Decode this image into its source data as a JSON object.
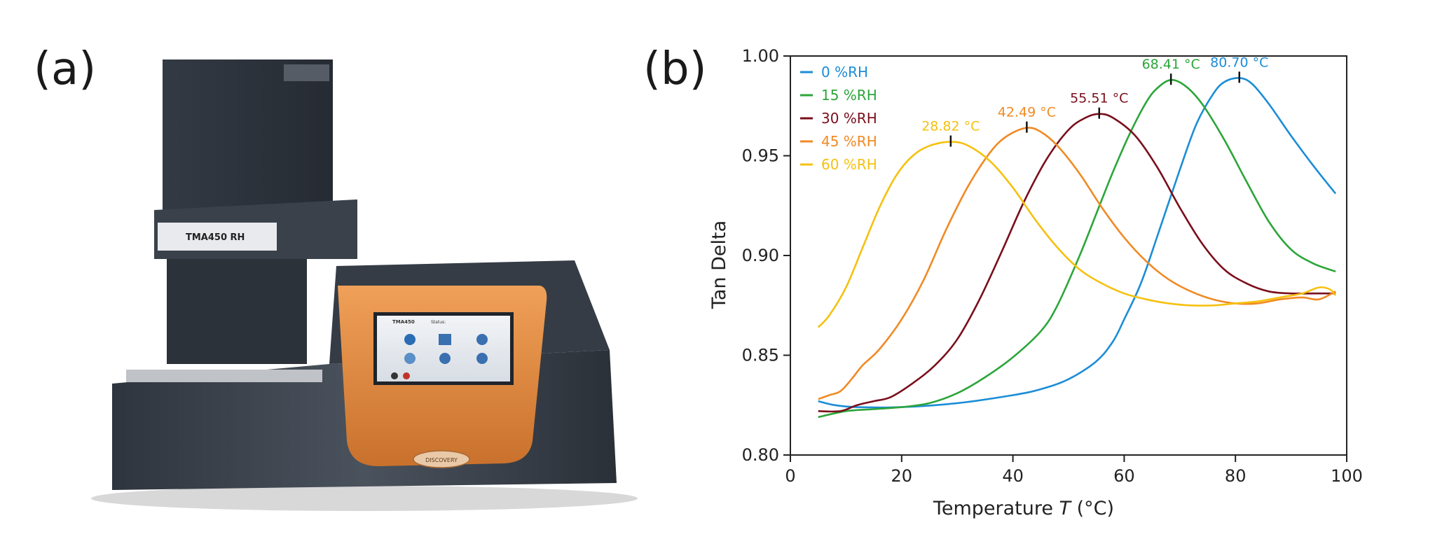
{
  "panels": {
    "a": "(a)",
    "b": "(b)"
  },
  "instrument": {
    "model": "TMA450 RH",
    "screen_model": "TMA450",
    "status_label": "Status:",
    "badge": "DISCOVERY"
  },
  "colors": {
    "0 %RH": "#1b8dd6",
    "15 %RH": "#2ca53a",
    "30 %RH": "#7a0f1c",
    "45 %RH": "#f08a24",
    "60 %RH": "#f5c110",
    "instrument_body": "#3e4550",
    "instrument_accent": "#e08a3c"
  },
  "chart_data": {
    "type": "line",
    "xlabel": "Temperature",
    "xlabel_symbol": "T",
    "xlabel_unit": "(°C)",
    "ylabel": "Tan Delta",
    "xlim": [
      0,
      100
    ],
    "ylim": [
      0.8,
      1.0
    ],
    "xticks": [
      "0",
      "20",
      "40",
      "60",
      "80",
      "100"
    ],
    "yticks": [
      "0.80",
      "0.85",
      "0.90",
      "0.95",
      "1.00"
    ],
    "legend_position": "top-left",
    "grid": false,
    "series": [
      {
        "name": "0 %RH",
        "color": "#1b8dd6",
        "peak_label": "80.70 °C",
        "peak": [
          80.7,
          0.989
        ],
        "points": [
          [
            5,
            0.827
          ],
          [
            8,
            0.825
          ],
          [
            12,
            0.824
          ],
          [
            20,
            0.824
          ],
          [
            30,
            0.826
          ],
          [
            40,
            0.83
          ],
          [
            45,
            0.833
          ],
          [
            50,
            0.838
          ],
          [
            55,
            0.847
          ],
          [
            58,
            0.857
          ],
          [
            60,
            0.868
          ],
          [
            63,
            0.886
          ],
          [
            66,
            0.91
          ],
          [
            70,
            0.943
          ],
          [
            73,
            0.966
          ],
          [
            76,
            0.981
          ],
          [
            78,
            0.987
          ],
          [
            80.7,
            0.989
          ],
          [
            83,
            0.986
          ],
          [
            86,
            0.976
          ],
          [
            90,
            0.96
          ],
          [
            94,
            0.945
          ],
          [
            98,
            0.931
          ]
        ]
      },
      {
        "name": "15 %RH",
        "color": "#2ca53a",
        "peak_label": "68.41 °C",
        "peak": [
          68.41,
          0.988
        ],
        "points": [
          [
            5,
            0.819
          ],
          [
            10,
            0.822
          ],
          [
            15,
            0.823
          ],
          [
            20,
            0.824
          ],
          [
            25,
            0.826
          ],
          [
            30,
            0.831
          ],
          [
            35,
            0.839
          ],
          [
            40,
            0.849
          ],
          [
            45,
            0.862
          ],
          [
            48,
            0.875
          ],
          [
            52,
            0.9
          ],
          [
            55,
            0.921
          ],
          [
            58,
            0.942
          ],
          [
            61,
            0.961
          ],
          [
            64,
            0.977
          ],
          [
            66,
            0.984
          ],
          [
            68.41,
            0.988
          ],
          [
            71,
            0.985
          ],
          [
            74,
            0.976
          ],
          [
            78,
            0.958
          ],
          [
            82,
            0.937
          ],
          [
            86,
            0.917
          ],
          [
            90,
            0.903
          ],
          [
            94,
            0.896
          ],
          [
            98,
            0.892
          ]
        ]
      },
      {
        "name": "30 %RH",
        "color": "#7a0f1c",
        "peak_label": "55.51 °C",
        "peak": [
          55.51,
          0.971
        ],
        "points": [
          [
            5,
            0.822
          ],
          [
            9,
            0.822
          ],
          [
            12,
            0.825
          ],
          [
            15,
            0.827
          ],
          [
            18,
            0.829
          ],
          [
            22,
            0.836
          ],
          [
            26,
            0.845
          ],
          [
            30,
            0.858
          ],
          [
            34,
            0.878
          ],
          [
            38,
            0.902
          ],
          [
            42,
            0.927
          ],
          [
            46,
            0.948
          ],
          [
            50,
            0.963
          ],
          [
            53,
            0.969
          ],
          [
            55.51,
            0.971
          ],
          [
            58,
            0.969
          ],
          [
            62,
            0.96
          ],
          [
            66,
            0.944
          ],
          [
            70,
            0.924
          ],
          [
            74,
            0.906
          ],
          [
            78,
            0.893
          ],
          [
            82,
            0.886
          ],
          [
            86,
            0.882
          ],
          [
            90,
            0.881
          ],
          [
            94,
            0.881
          ],
          [
            98,
            0.881
          ]
        ]
      },
      {
        "name": "45 %RH",
        "color": "#f08a24",
        "peak_label": "42.49 °C",
        "peak": [
          42.49,
          0.964
        ],
        "points": [
          [
            5,
            0.828
          ],
          [
            7,
            0.83
          ],
          [
            9,
            0.832
          ],
          [
            11,
            0.838
          ],
          [
            13,
            0.845
          ],
          [
            16,
            0.853
          ],
          [
            20,
            0.868
          ],
          [
            24,
            0.888
          ],
          [
            28,
            0.913
          ],
          [
            32,
            0.935
          ],
          [
            36,
            0.952
          ],
          [
            39,
            0.96
          ],
          [
            42.49,
            0.964
          ],
          [
            45,
            0.962
          ],
          [
            48,
            0.955
          ],
          [
            52,
            0.941
          ],
          [
            56,
            0.924
          ],
          [
            60,
            0.909
          ],
          [
            64,
            0.897
          ],
          [
            68,
            0.888
          ],
          [
            72,
            0.882
          ],
          [
            76,
            0.878
          ],
          [
            80,
            0.876
          ],
          [
            84,
            0.876
          ],
          [
            88,
            0.878
          ],
          [
            92,
            0.879
          ],
          [
            95,
            0.878
          ],
          [
            98,
            0.882
          ]
        ]
      },
      {
        "name": "60 %RH",
        "color": "#f5c110",
        "peak_label": "28.82 °C",
        "peak": [
          28.82,
          0.957
        ],
        "points": [
          [
            5,
            0.864
          ],
          [
            7,
            0.87
          ],
          [
            10,
            0.884
          ],
          [
            13,
            0.904
          ],
          [
            16,
            0.924
          ],
          [
            19,
            0.94
          ],
          [
            22,
            0.95
          ],
          [
            25,
            0.955
          ],
          [
            28.82,
            0.957
          ],
          [
            32,
            0.955
          ],
          [
            36,
            0.947
          ],
          [
            40,
            0.934
          ],
          [
            44,
            0.918
          ],
          [
            48,
            0.904
          ],
          [
            52,
            0.893
          ],
          [
            56,
            0.886
          ],
          [
            60,
            0.881
          ],
          [
            64,
            0.878
          ],
          [
            68,
            0.876
          ],
          [
            72,
            0.875
          ],
          [
            76,
            0.875
          ],
          [
            80,
            0.876
          ],
          [
            84,
            0.877
          ],
          [
            88,
            0.879
          ],
          [
            92,
            0.881
          ],
          [
            95,
            0.884
          ],
          [
            97,
            0.883
          ],
          [
            98,
            0.88
          ]
        ]
      }
    ]
  }
}
